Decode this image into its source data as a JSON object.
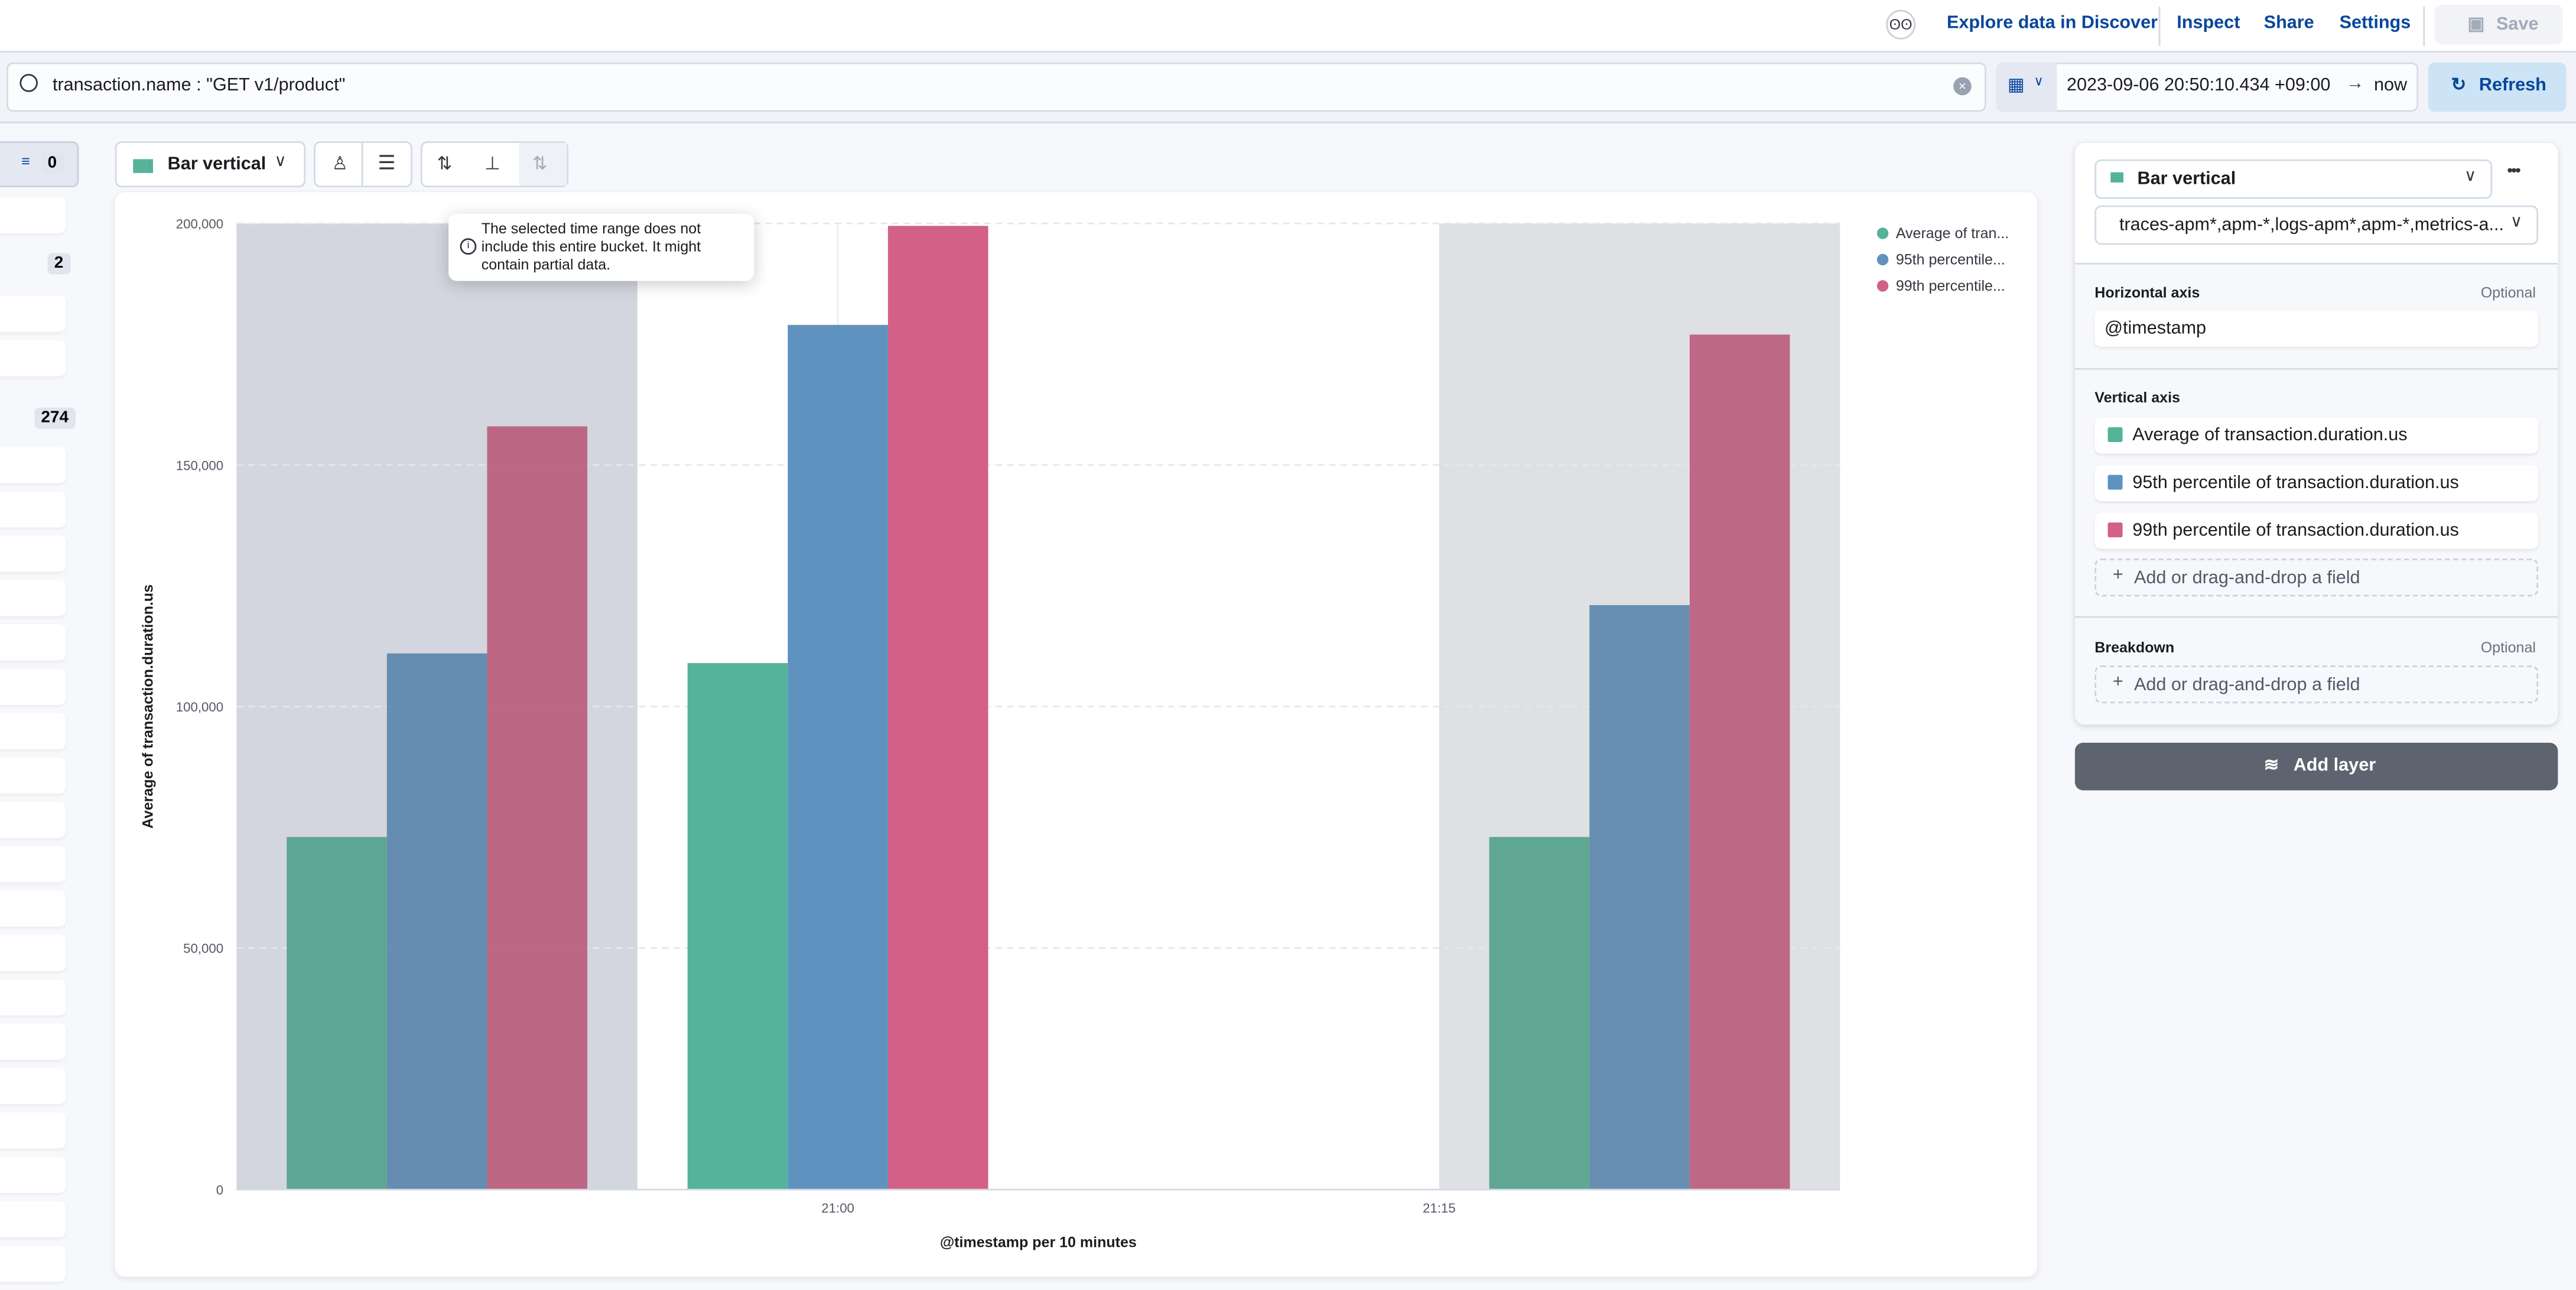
{
  "topbar": {
    "links": [
      "Explore data in Discover",
      "Inspect",
      "Share",
      "Settings"
    ],
    "save_label": "Save"
  },
  "query": {
    "value": "transaction.name : \"GET v1/product\"",
    "date_start": "2023-09-06 20:50:10.434 +09:00",
    "date_end": "now",
    "refresh_label": "Refresh"
  },
  "sidebar": {
    "filter_count": "0",
    "badges": [
      "2",
      "274"
    ]
  },
  "toolbar": {
    "chart_type": "Bar vertical"
  },
  "tooltip": {
    "text": "The selected time range does not include this entire bucket. It might contain partial data."
  },
  "config": {
    "chart_type": "Bar vertical",
    "index_pattern": "traces-apm*,apm-*,logs-apm*,apm-*,metrics-a...",
    "horizontal_axis": {
      "label": "Horizontal axis",
      "optional": "Optional",
      "field": "@timestamp"
    },
    "vertical_axis": {
      "label": "Vertical axis",
      "fields": [
        {
          "name": "Average of transaction.duration.us",
          "color": "#54B399"
        },
        {
          "name": "95th percentile of transaction.duration.us",
          "color": "#6092C0"
        },
        {
          "name": "99th percentile of transaction.duration.us",
          "color": "#D36086"
        }
      ],
      "add": "Add or drag-and-drop a field"
    },
    "breakdown": {
      "label": "Breakdown",
      "optional": "Optional",
      "add": "Add or drag-and-drop a field"
    },
    "add_layer": "Add layer"
  },
  "chart_data": {
    "type": "bar",
    "xlabel": "@timestamp per 10 minutes",
    "ylabel": "Average of transaction.duration.us",
    "ylim": [
      0,
      200000
    ],
    "yticks": [
      0,
      50000,
      100000,
      150000,
      200000
    ],
    "ytick_labels": [
      "0",
      "50,000",
      "100,000",
      "150,000",
      "200,000"
    ],
    "xlim": [
      "20:45",
      "21:25"
    ],
    "xticks": [
      "21:00",
      "21:15"
    ],
    "categories": [
      "20:50",
      "21:00",
      "21:20"
    ],
    "partial_buckets": [
      [
        "20:45",
        "20:55"
      ],
      [
        "21:15",
        "21:25"
      ]
    ],
    "grid": true,
    "legend_position": "right",
    "legend": [
      "Average of tran...",
      "95th percentile...",
      "99th percentile..."
    ],
    "series": [
      {
        "name": "Average of transaction.duration.us",
        "color": "#54B399",
        "values": [
          73000,
          109000,
          73000
        ]
      },
      {
        "name": "95th percentile of transaction.duration.us",
        "color": "#6092C0",
        "values": [
          111000,
          179000,
          121000
        ]
      },
      {
        "name": "99th percentile of transaction.duration.us",
        "color": "#D36086",
        "values": [
          158000,
          199500,
          177000
        ]
      }
    ]
  }
}
